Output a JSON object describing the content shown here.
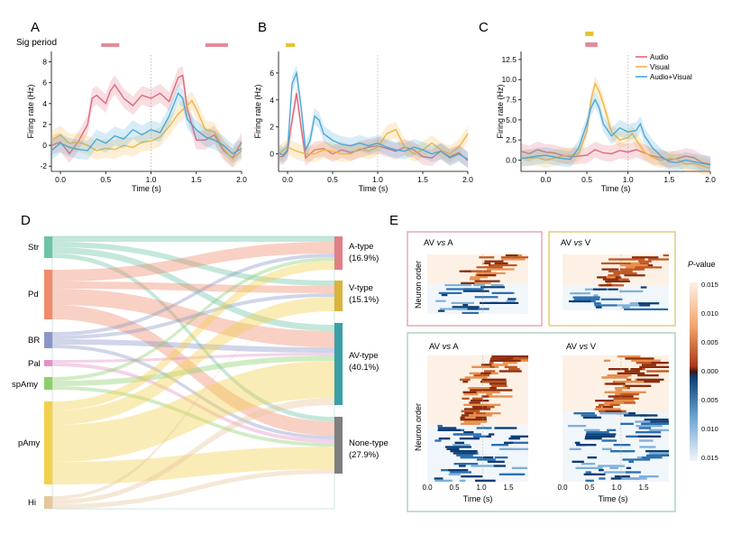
{
  "panels": {
    "A": {
      "letter": "A",
      "extra_label": "Sig period",
      "ylabel": "Firing rate (Hz)",
      "xlabel": "Time (s)",
      "xticks": [
        "0.0",
        "0.5",
        "1.0",
        "1.5",
        "2.0"
      ],
      "yticks": [
        "-2",
        "0",
        "2",
        "4",
        "6",
        "8"
      ]
    },
    "B": {
      "letter": "B",
      "ylabel": "Firing rate (Hz)",
      "xlabel": "Time (s)",
      "xticks": [
        "0.0",
        "0.5",
        "1.0",
        "1.5",
        "2.0"
      ],
      "yticks": [
        "0",
        "2",
        "4",
        "6"
      ]
    },
    "C": {
      "letter": "C",
      "ylabel": "Firing rate (Hz)",
      "xlabel": "Time (s)",
      "xticks": [
        "0.0",
        "0.5",
        "1.0",
        "1.5",
        "2.0"
      ],
      "yticks": [
        "0.0",
        "2.5",
        "5.0",
        "7.5",
        "10.0",
        "12.5"
      ],
      "legend": [
        "Audio",
        "Visual",
        "Audio+Visual"
      ]
    },
    "D": {
      "letter": "D",
      "left_regions": [
        "Str",
        "Pd",
        "BR",
        "Pal",
        "spAmy",
        "pAmy",
        "Hi"
      ],
      "right_types": [
        {
          "name": "A-type",
          "pct": "(16.9%)"
        },
        {
          "name": "V-type",
          "pct": "(15.1%)"
        },
        {
          "name": "AV-type",
          "pct": "(40.1%)"
        },
        {
          "name": "None-type",
          "pct": "(27.9%)"
        }
      ]
    },
    "E": {
      "letter": "E",
      "subpanels": [
        {
          "pre": "AV ",
          "vs": "vs",
          "post": " A"
        },
        {
          "pre": "AV ",
          "vs": "vs",
          "post": " V"
        },
        {
          "pre": "AV ",
          "vs": "vs",
          "post": " A"
        },
        {
          "pre": "AV ",
          "vs": "vs",
          "post": " V"
        }
      ],
      "ylabel": "Neuron order",
      "xlabel": "Time (s)",
      "xticks": [
        "0.0",
        "0.5",
        "1.0",
        "1.5"
      ],
      "colorbar": {
        "title_italic": "P",
        "title_rest": "-value",
        "ticks": [
          "0.015",
          "0.010",
          "0.005",
          "0.000",
          "0.005",
          "0.010",
          "0.015"
        ]
      }
    }
  },
  "colors": {
    "audio": "#e0677a",
    "visual": "#f2b544",
    "audiovisual": "#4aa9d6",
    "sig_audio": "#e48a9a",
    "sig_visual": "#e8c230",
    "regions": [
      "#6cc4a4",
      "#f08a6c",
      "#8b96c8",
      "#e58fc8",
      "#8ccf6c",
      "#f3d04c",
      "#e6c69a"
    ],
    "types": [
      "#e07f86",
      "#d9b43e",
      "#3aa0a8",
      "#7f7f7f"
    ],
    "box_pink": "#e39aa8",
    "box_yellow": "#e0c46a",
    "box_green": "#9fd0b6"
  },
  "chart_data": [
    {
      "type": "line",
      "panel": "A",
      "xlim": [
        -0.1,
        2.0
      ],
      "ylim": [
        -2.5,
        9
      ],
      "series": [
        {
          "name": "Audio",
          "points": [
            [
              -0.1,
              0
            ],
            [
              0.0,
              0.3
            ],
            [
              0.1,
              -0.8
            ],
            [
              0.2,
              0.4
            ],
            [
              0.3,
              2.0
            ],
            [
              0.35,
              4.5
            ],
            [
              0.4,
              4.8
            ],
            [
              0.5,
              4.0
            ],
            [
              0.55,
              5.2
            ],
            [
              0.6,
              5.8
            ],
            [
              0.7,
              4.5
            ],
            [
              0.8,
              3.8
            ],
            [
              0.9,
              4.8
            ],
            [
              1.0,
              4.5
            ],
            [
              1.1,
              5.0
            ],
            [
              1.2,
              4.2
            ],
            [
              1.3,
              6.5
            ],
            [
              1.35,
              6.7
            ],
            [
              1.4,
              3.5
            ],
            [
              1.5,
              0.5
            ],
            [
              1.6,
              0.5
            ],
            [
              1.7,
              1.0
            ],
            [
              1.8,
              -0.5
            ],
            [
              1.9,
              -1.2
            ],
            [
              2.0,
              0.3
            ]
          ]
        },
        {
          "name": "Visual",
          "points": [
            [
              -0.1,
              0.5
            ],
            [
              0.0,
              1.0
            ],
            [
              0.1,
              0.2
            ],
            [
              0.2,
              0.3
            ],
            [
              0.3,
              0
            ],
            [
              0.4,
              -0.5
            ],
            [
              0.5,
              -0.3
            ],
            [
              0.6,
              -0.4
            ],
            [
              0.7,
              0
            ],
            [
              0.8,
              -0.2
            ],
            [
              0.9,
              0.3
            ],
            [
              1.0,
              0.4
            ],
            [
              1.1,
              0.8
            ],
            [
              1.2,
              1.8
            ],
            [
              1.3,
              3.0
            ],
            [
              1.4,
              3.8
            ],
            [
              1.45,
              4.3
            ],
            [
              1.5,
              3.5
            ],
            [
              1.6,
              1.5
            ],
            [
              1.7,
              1.3
            ],
            [
              1.8,
              -0.3
            ],
            [
              1.9,
              -1.3
            ],
            [
              2.0,
              -0.5
            ]
          ]
        },
        {
          "name": "Audio+Visual",
          "points": [
            [
              -0.1,
              -0.5
            ],
            [
              0.0,
              0.2
            ],
            [
              0.1,
              -0.2
            ],
            [
              0.2,
              -0.4
            ],
            [
              0.3,
              -0.5
            ],
            [
              0.4,
              0.6
            ],
            [
              0.5,
              0.2
            ],
            [
              0.6,
              0.9
            ],
            [
              0.7,
              0.6
            ],
            [
              0.8,
              1.5
            ],
            [
              0.9,
              1.0
            ],
            [
              1.0,
              1.5
            ],
            [
              1.1,
              1.2
            ],
            [
              1.2,
              2.8
            ],
            [
              1.3,
              5.0
            ],
            [
              1.35,
              4.5
            ],
            [
              1.4,
              2.5
            ],
            [
              1.5,
              1.5
            ],
            [
              1.6,
              0.8
            ],
            [
              1.7,
              0.5
            ],
            [
              1.8,
              0
            ],
            [
              1.9,
              -0.8
            ],
            [
              2.0,
              -0.3
            ]
          ]
        }
      ],
      "sig_periods": [
        [
          0.45,
          0.65
        ],
        [
          1.6,
          1.85
        ]
      ]
    },
    {
      "type": "line",
      "panel": "B",
      "xlim": [
        -0.1,
        2.0
      ],
      "ylim": [
        -1.3,
        7.6
      ],
      "series": [
        {
          "name": "Audio",
          "points": [
            [
              -0.1,
              -0.2
            ],
            [
              -0.05,
              -0.2
            ],
            [
              0.0,
              0.2
            ],
            [
              0.05,
              2.5
            ],
            [
              0.1,
              4.5
            ],
            [
              0.15,
              2.0
            ],
            [
              0.2,
              -0.3
            ],
            [
              0.25,
              0
            ],
            [
              0.3,
              0.3
            ],
            [
              0.4,
              0.4
            ],
            [
              0.5,
              0
            ],
            [
              0.6,
              0.3
            ],
            [
              0.7,
              0.1
            ],
            [
              0.8,
              0.3
            ],
            [
              0.9,
              0.5
            ],
            [
              1.0,
              0.6
            ],
            [
              1.1,
              0.4
            ],
            [
              1.2,
              0.2
            ],
            [
              1.3,
              0.5
            ],
            [
              1.4,
              0.3
            ],
            [
              1.5,
              -0.2
            ],
            [
              1.6,
              -0.3
            ],
            [
              1.7,
              0.2
            ],
            [
              1.8,
              -0.2
            ],
            [
              1.9,
              0.1
            ],
            [
              2.0,
              -0.5
            ]
          ]
        },
        {
          "name": "Visual",
          "points": [
            [
              -0.1,
              0
            ],
            [
              0.0,
              0.5
            ],
            [
              0.1,
              0.2
            ],
            [
              0.2,
              0
            ],
            [
              0.3,
              0
            ],
            [
              0.4,
              0.3
            ],
            [
              0.5,
              0.2
            ],
            [
              0.6,
              0
            ],
            [
              0.7,
              0
            ],
            [
              0.8,
              0.4
            ],
            [
              0.9,
              0.2
            ],
            [
              1.0,
              0.5
            ],
            [
              1.1,
              1.5
            ],
            [
              1.2,
              1.8
            ],
            [
              1.3,
              0.5
            ],
            [
              1.4,
              0
            ],
            [
              1.5,
              0.3
            ],
            [
              1.6,
              0.8
            ],
            [
              1.7,
              0.3
            ],
            [
              1.8,
              0
            ],
            [
              1.9,
              0.5
            ],
            [
              2.0,
              1.5
            ]
          ]
        },
        {
          "name": "Audio+Visual",
          "points": [
            [
              -0.1,
              0.1
            ],
            [
              -0.05,
              -0.1
            ],
            [
              0.0,
              0.3
            ],
            [
              0.05,
              5.2
            ],
            [
              0.1,
              6.0
            ],
            [
              0.15,
              3.5
            ],
            [
              0.2,
              0.3
            ],
            [
              0.25,
              1.0
            ],
            [
              0.3,
              2.8
            ],
            [
              0.35,
              2.5
            ],
            [
              0.4,
              1.5
            ],
            [
              0.5,
              1.0
            ],
            [
              0.6,
              0.7
            ],
            [
              0.7,
              0.6
            ],
            [
              0.8,
              0.8
            ],
            [
              0.9,
              0.6
            ],
            [
              1.0,
              0.8
            ],
            [
              1.1,
              0.5
            ],
            [
              1.2,
              0.3
            ],
            [
              1.3,
              0.2
            ],
            [
              1.4,
              0.5
            ],
            [
              1.5,
              0.3
            ],
            [
              1.6,
              0
            ],
            [
              1.7,
              0.2
            ],
            [
              1.8,
              -0.3
            ],
            [
              1.9,
              0
            ],
            [
              2.0,
              -0.4
            ]
          ]
        }
      ],
      "sig_periods": [
        [
          -0.02,
          0.08
        ]
      ]
    },
    {
      "type": "line",
      "panel": "C",
      "xlim": [
        -0.3,
        2.0
      ],
      "ylim": [
        -1.4,
        13.5
      ],
      "series": [
        {
          "name": "Audio",
          "points": [
            [
              -0.3,
              1.1
            ],
            [
              -0.2,
              0.8
            ],
            [
              -0.1,
              1.3
            ],
            [
              0.0,
              1.0
            ],
            [
              0.1,
              0.9
            ],
            [
              0.2,
              0.6
            ],
            [
              0.3,
              0.4
            ],
            [
              0.4,
              0.5
            ],
            [
              0.5,
              0.6
            ],
            [
              0.6,
              1.3
            ],
            [
              0.7,
              0.9
            ],
            [
              0.8,
              0.8
            ],
            [
              0.9,
              1.2
            ],
            [
              1.0,
              1.0
            ],
            [
              1.1,
              1.3
            ],
            [
              1.2,
              0.9
            ],
            [
              1.3,
              0.5
            ],
            [
              1.4,
              0.3
            ],
            [
              1.5,
              0
            ],
            [
              1.6,
              0.2
            ],
            [
              1.7,
              0.5
            ],
            [
              1.8,
              0.3
            ],
            [
              1.9,
              -0.3
            ],
            [
              2.0,
              -0.5
            ]
          ]
        },
        {
          "name": "Visual",
          "points": [
            [
              -0.3,
              0.2
            ],
            [
              -0.1,
              0.3
            ],
            [
              0.0,
              0
            ],
            [
              0.2,
              0.5
            ],
            [
              0.3,
              0.6
            ],
            [
              0.4,
              0.8
            ],
            [
              0.5,
              3.5
            ],
            [
              0.55,
              7.5
            ],
            [
              0.6,
              9.5
            ],
            [
              0.65,
              8.5
            ],
            [
              0.7,
              7.0
            ],
            [
              0.8,
              3.5
            ],
            [
              0.9,
              2.5
            ],
            [
              1.0,
              2.8
            ],
            [
              1.05,
              3.3
            ],
            [
              1.1,
              2.5
            ],
            [
              1.2,
              1.0
            ],
            [
              1.3,
              0.3
            ],
            [
              1.4,
              0
            ],
            [
              1.5,
              0.2
            ],
            [
              1.6,
              0.1
            ],
            [
              1.7,
              -0.5
            ],
            [
              1.8,
              -0.4
            ],
            [
              2.0,
              -1.0
            ]
          ]
        },
        {
          "name": "Audio+Visual",
          "points": [
            [
              -0.3,
              0.2
            ],
            [
              -0.1,
              0.5
            ],
            [
              0.0,
              0.6
            ],
            [
              0.1,
              0.4
            ],
            [
              0.2,
              0.2
            ],
            [
              0.3,
              0.1
            ],
            [
              0.4,
              1.5
            ],
            [
              0.5,
              4.5
            ],
            [
              0.55,
              6.5
            ],
            [
              0.6,
              7.5
            ],
            [
              0.65,
              6.5
            ],
            [
              0.7,
              4.5
            ],
            [
              0.8,
              3.0
            ],
            [
              0.9,
              4.0
            ],
            [
              1.0,
              3.5
            ],
            [
              1.1,
              3.7
            ],
            [
              1.15,
              4.5
            ],
            [
              1.2,
              3.0
            ],
            [
              1.3,
              1.5
            ],
            [
              1.4,
              0.5
            ],
            [
              1.5,
              -0.2
            ],
            [
              1.6,
              -0.3
            ],
            [
              1.7,
              0
            ],
            [
              1.8,
              -0.2
            ],
            [
              2.0,
              -0.6
            ]
          ]
        }
      ],
      "sig_periods_visual": [
        [
          0.48,
          0.58
        ]
      ],
      "sig_periods_audio": [
        [
          0.48,
          0.63
        ]
      ]
    }
  ]
}
